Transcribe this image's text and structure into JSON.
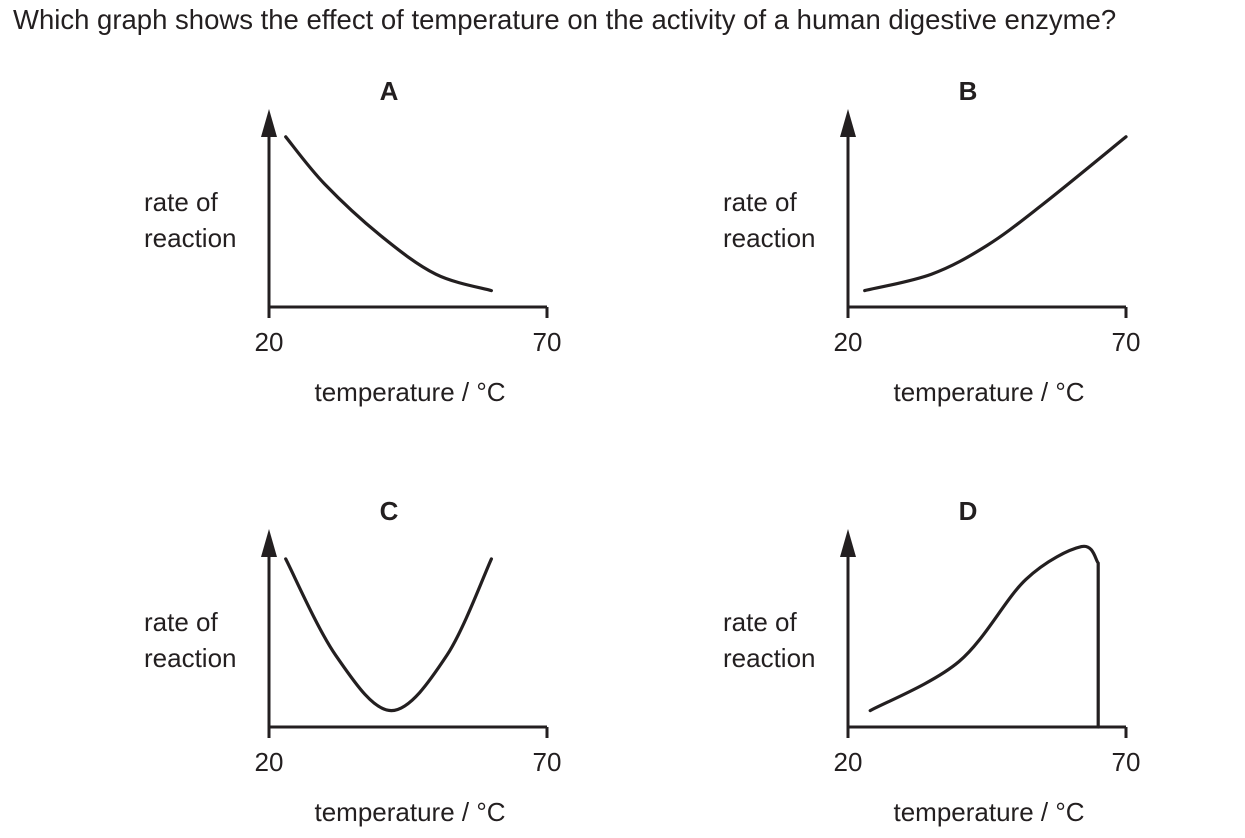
{
  "question": "Which graph shows the effect of temperature on the activity of a human digestive enzyme?",
  "chart_data": [
    {
      "type": "line",
      "title": "A",
      "ylabel": [
        "rate of",
        "reaction"
      ],
      "xlabel": "temperature / °C",
      "x_ticks": [
        "20",
        "70"
      ],
      "xlim": [
        20,
        70
      ],
      "shape": "decreasing curve",
      "x": [
        23,
        30,
        40,
        50,
        60
      ],
      "y": [
        0.83,
        0.6,
        0.35,
        0.16,
        0.08
      ]
    },
    {
      "type": "line",
      "title": "B",
      "ylabel": [
        "rate of",
        "reaction"
      ],
      "xlabel": "temperature / °C",
      "x_ticks": [
        "20",
        "70"
      ],
      "xlim": [
        20,
        70
      ],
      "shape": "increasing curve",
      "x": [
        23,
        35,
        45,
        55,
        70
      ],
      "y": [
        0.08,
        0.16,
        0.3,
        0.5,
        0.83
      ]
    },
    {
      "type": "line",
      "title": "C",
      "ylabel": [
        "rate of",
        "reaction"
      ],
      "xlabel": "temperature / °C",
      "x_ticks": [
        "20",
        "70"
      ],
      "xlim": [
        20,
        70
      ],
      "shape": "U-shaped curve",
      "x": [
        23,
        32,
        42,
        52,
        60
      ],
      "y": [
        0.82,
        0.35,
        0.08,
        0.35,
        0.82
      ]
    },
    {
      "type": "line",
      "title": "D",
      "ylabel": [
        "rate of",
        "reaction"
      ],
      "xlabel": "temperature / °C",
      "x_ticks": [
        "20",
        "70"
      ],
      "xlim": [
        20,
        70
      ],
      "shape": "rises to a peak then falls sharply",
      "x": [
        24,
        40,
        52,
        62,
        65,
        65
      ],
      "y": [
        0.08,
        0.32,
        0.72,
        0.88,
        0.8,
        0.0
      ]
    }
  ]
}
